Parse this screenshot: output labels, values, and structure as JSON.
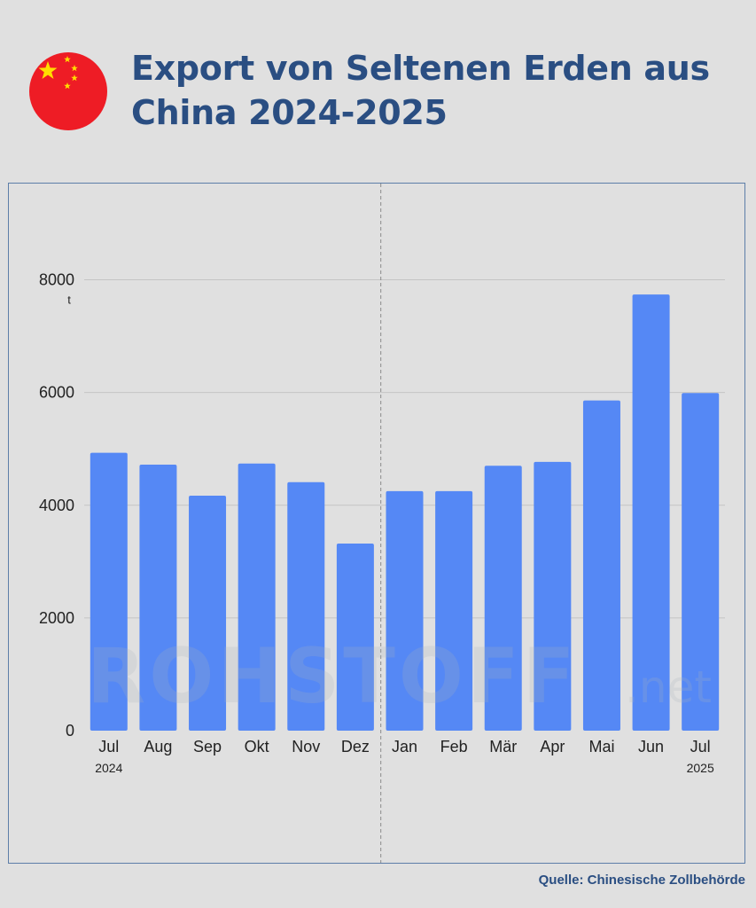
{
  "header": {
    "title": "Export von Seltenen Erden aus China 2024-2025",
    "flag_icon": "china-flag-icon"
  },
  "watermark": {
    "main": "ROHSTOFF",
    "suffix": ".net"
  },
  "source": "Quelle: Chinesische Zollbehörde",
  "colors": {
    "bar": "#5588f5",
    "title": "#2a4e82",
    "background": "#e0e0e0",
    "frame": "#5d7ea8",
    "flag_red": "#ee1c25",
    "flag_star": "#ffde00"
  },
  "chart_data": {
    "type": "bar",
    "categories": [
      "Jul",
      "Aug",
      "Sep",
      "Okt",
      "Nov",
      "Dez",
      "Jan",
      "Feb",
      "Mär",
      "Apr",
      "Mai",
      "Jun",
      "Jul"
    ],
    "year_labels": [
      {
        "category_index": 0,
        "label": "2024"
      },
      {
        "category_index": 12,
        "label": "2025"
      }
    ],
    "values": [
      4930,
      4720,
      4170,
      4740,
      4410,
      3320,
      4250,
      4250,
      4700,
      4770,
      5860,
      7740,
      5990
    ],
    "ylabel": "",
    "yunit": "t",
    "yticks": [
      0,
      2000,
      4000,
      6000,
      8000
    ],
    "ylim": [
      0,
      9000
    ],
    "grid": true,
    "divider_after_index": 5,
    "legend": "none"
  }
}
